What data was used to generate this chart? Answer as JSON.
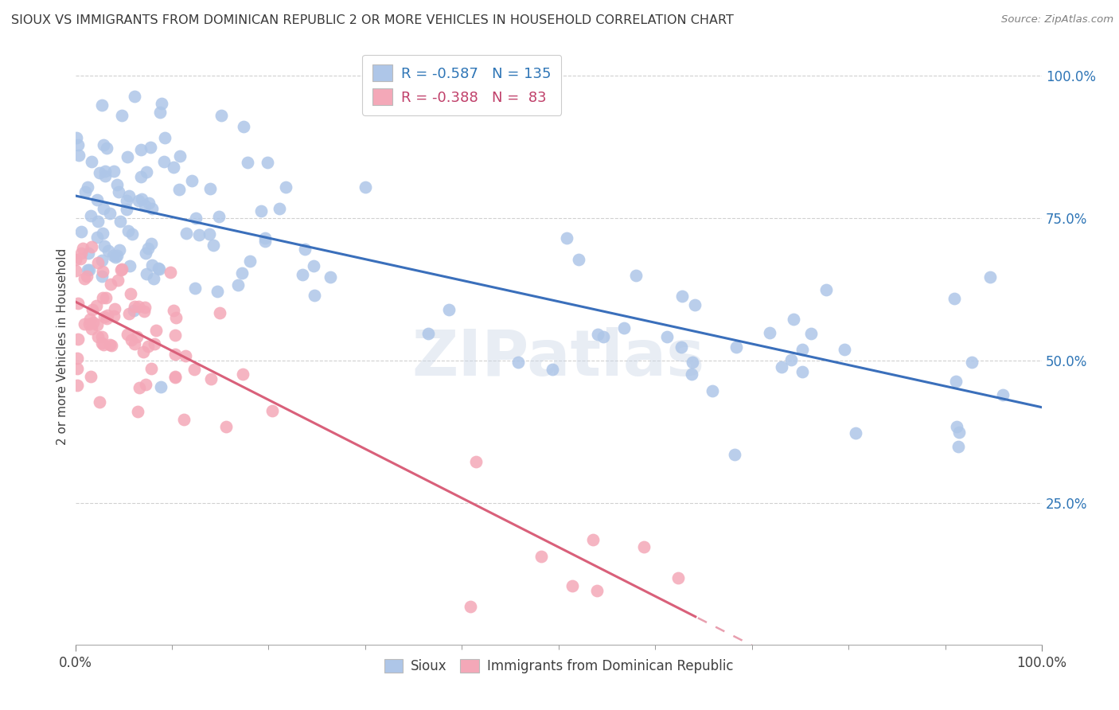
{
  "title": "SIOUX VS IMMIGRANTS FROM DOMINICAN REPUBLIC 2 OR MORE VEHICLES IN HOUSEHOLD CORRELATION CHART",
  "source": "Source: ZipAtlas.com",
  "ylabel": "2 or more Vehicles in Household",
  "watermark": "ZIPatlas",
  "sioux_color": "#aec6e8",
  "dr_color": "#f4a8b8",
  "sioux_line_color": "#3a6fbb",
  "dr_line_color": "#d9607a",
  "background_color": "#ffffff",
  "grid_color": "#cccccc",
  "title_color": "#3a3a3a",
  "source_color": "#808080",
  "legend_text_color_blue": "#2e75b6",
  "legend_text_color_pink": "#c0406a",
  "sioux_R": -0.587,
  "sioux_N": 135,
  "dr_R": -0.388,
  "dr_N": 83,
  "xlim": [
    0,
    1.0
  ],
  "ylim": [
    0,
    1.05
  ],
  "x_tick_labels": [
    "0.0%",
    "100.0%"
  ],
  "y_tick_positions": [
    0.25,
    0.5,
    0.75,
    1.0
  ],
  "y_tick_labels": [
    "25.0%",
    "50.0%",
    "75.0%",
    "100.0%"
  ]
}
